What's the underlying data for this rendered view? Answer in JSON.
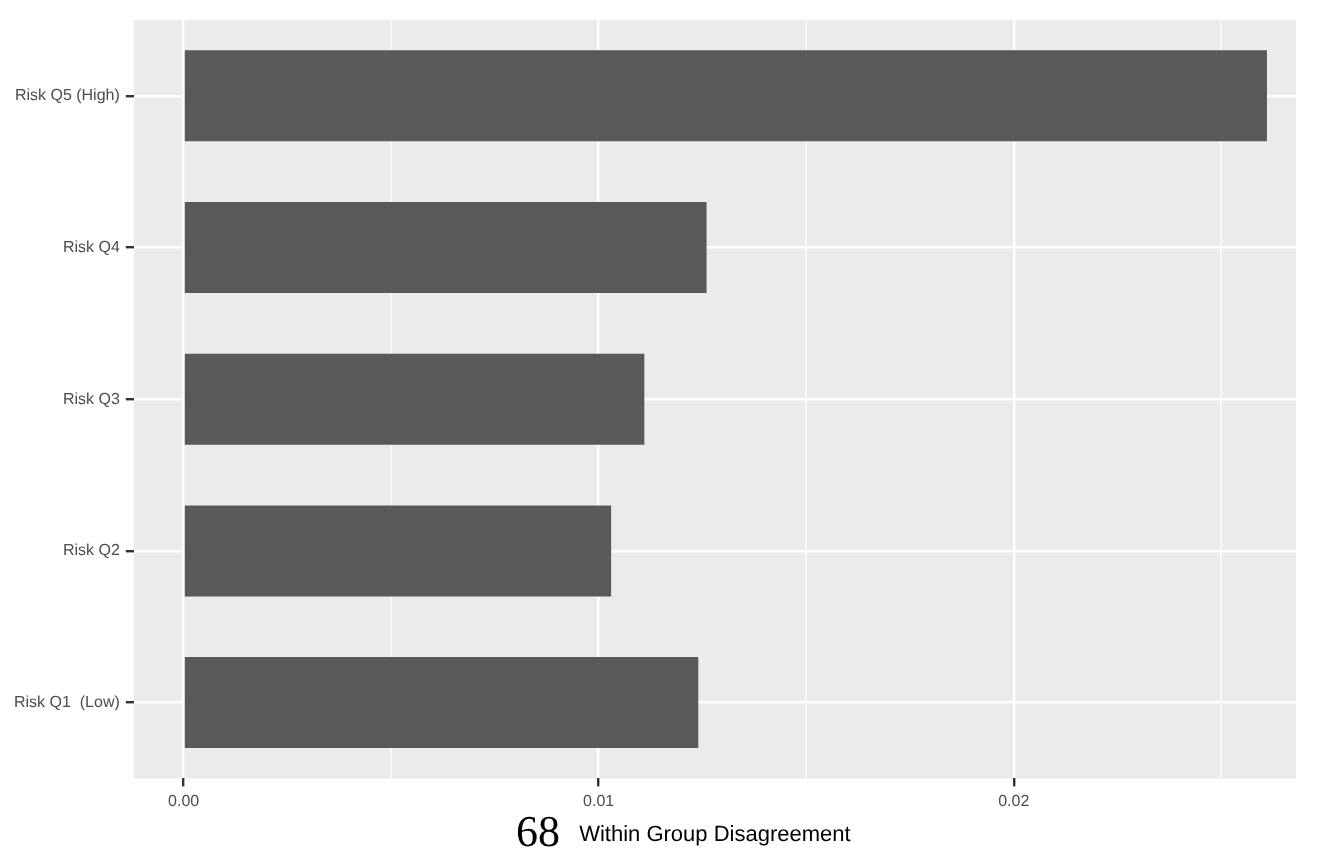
{
  "chart_data": {
    "type": "bar",
    "orientation": "horizontal",
    "xlabel": "Within Group Disagreement",
    "categories": [
      "Risk Q5 (High)",
      "Risk Q4",
      "Risk Q3",
      "Risk Q2",
      "Risk Q1  (Low)"
    ],
    "values": [
      0.0261,
      0.0126,
      0.0111,
      0.0103,
      0.0124
    ],
    "color": "#595959",
    "xlim": [
      -0.0012,
      0.0268
    ],
    "xticks": [
      {
        "value": 0,
        "label": "0.00"
      },
      {
        "value": 0.005,
        "label": null
      },
      {
        "value": 0.01,
        "label": "0.01"
      },
      {
        "value": 0.015,
        "label": null
      },
      {
        "value": 0.02,
        "label": "0.02"
      },
      {
        "value": 0.025,
        "label": null
      }
    ],
    "grid": true,
    "annotations": [
      "68"
    ]
  }
}
